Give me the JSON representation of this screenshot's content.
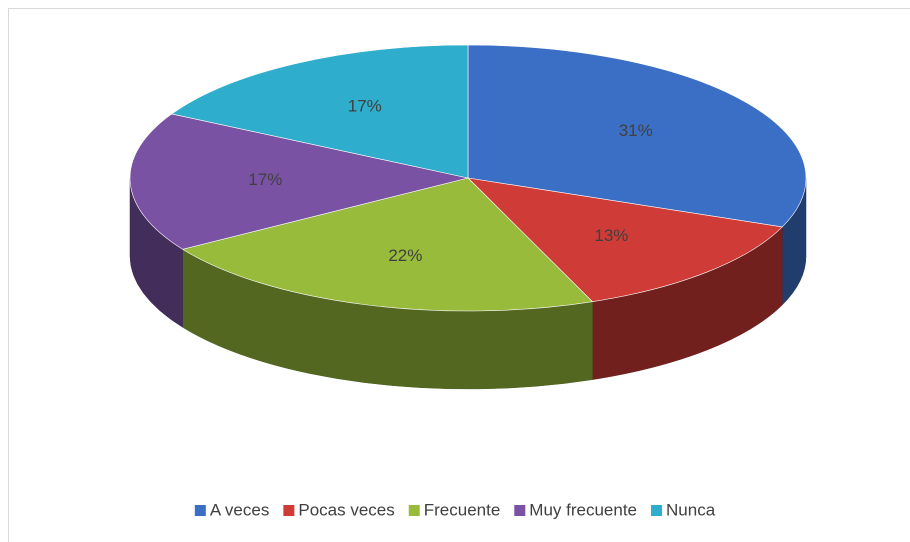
{
  "chart_data": {
    "type": "pie",
    "categories": [
      "A veces",
      "Pocas veces",
      "Frecuente",
      "Muy frecuente",
      "Nunca"
    ],
    "values": [
      31,
      13,
      22,
      17,
      17
    ],
    "value_labels": [
      "31%",
      "13%",
      "22%",
      "17%",
      "17%"
    ],
    "colors": [
      "#3b6fc6",
      "#cf3b36",
      "#98bb3c",
      "#7a52a3",
      "#2fadcc"
    ],
    "legend": "bottom"
  }
}
